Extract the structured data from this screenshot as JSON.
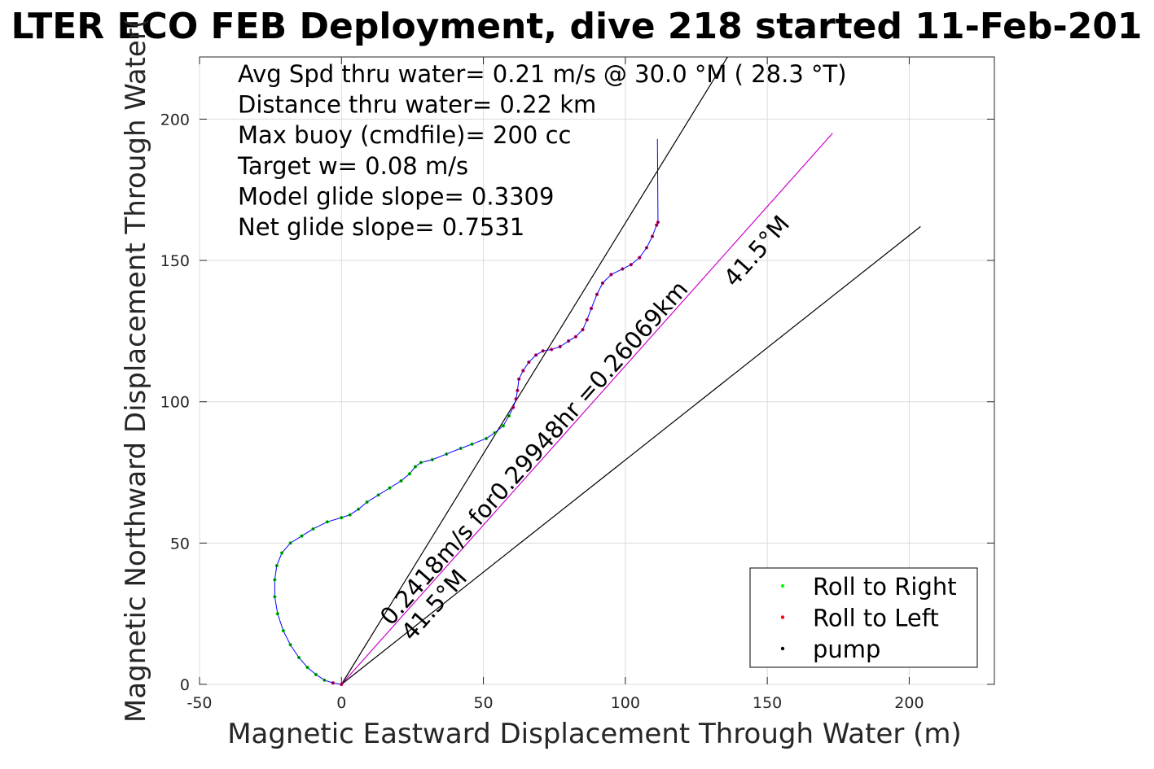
{
  "chart_data": {
    "type": "line",
    "title": "LTER ECO FEB Deployment, dive 218 started 11-Feb-201",
    "xlabel": "Magnetic Eastward Displacement Through Water (m)",
    "ylabel": "Magnetic Northward Displacement Through Water(",
    "xlim": [
      -50,
      230
    ],
    "ylim": [
      0,
      222
    ],
    "xticks": [
      -50,
      0,
      50,
      100,
      150,
      200
    ],
    "yticks": [
      0,
      50,
      100,
      150,
      200
    ],
    "xtick_labels": [
      "-50",
      "0",
      "50",
      "100",
      "150",
      "200"
    ],
    "ytick_labels": [
      "0",
      "50",
      "100",
      "150",
      "200"
    ],
    "grid": true,
    "legend_position": "bottom-right",
    "annotations": [
      "Avg Spd thru water=  0.21 m/s @  30.0 °M ( 28.3 °T)",
      "Distance thru water=  0.22 km",
      "Max buoy (cmdfile)= 200 cc",
      "Target w= 0.08 m/s",
      "Model glide slope= 0.3309",
      "Net glide slope= 0.7531"
    ],
    "rotated_labels": {
      "speed_label": "0.2418m/s for0.29948hr =0.26069km",
      "heading_upper": "41.5°M",
      "heading_lower": "41.5°M"
    },
    "legend": [
      {
        "label": "Roll to Right",
        "color": "#00ff00"
      },
      {
        "label": "Roll to Left",
        "color": "#ff0000"
      },
      {
        "label": "pump",
        "color": "#000000"
      }
    ],
    "track": [
      [
        0,
        0
      ],
      [
        -3,
        0.5
      ],
      [
        -6,
        1.5
      ],
      [
        -9,
        3.5
      ],
      [
        -12,
        6
      ],
      [
        -15,
        9.5
      ],
      [
        -18,
        14
      ],
      [
        -20.5,
        19
      ],
      [
        -22.5,
        25
      ],
      [
        -23.5,
        31
      ],
      [
        -23.5,
        37
      ],
      [
        -22.8,
        42
      ],
      [
        -21,
        46.5
      ],
      [
        -18,
        50
      ],
      [
        -14,
        52.5
      ],
      [
        -10,
        55
      ],
      [
        -5,
        57.5
      ],
      [
        0,
        59
      ],
      [
        3,
        60
      ],
      [
        6,
        62
      ],
      [
        9,
        64.5
      ],
      [
        13,
        67
      ],
      [
        17,
        69.5
      ],
      [
        21,
        72
      ],
      [
        24,
        74.5
      ],
      [
        26,
        77
      ],
      [
        28,
        78.5
      ],
      [
        32,
        79.5
      ],
      [
        37,
        81.5
      ],
      [
        42,
        83.5
      ],
      [
        46,
        85
      ],
      [
        51,
        87
      ],
      [
        54,
        89
      ],
      [
        57,
        91.5
      ],
      [
        59,
        95
      ],
      [
        60.5,
        98
      ],
      [
        61.5,
        101
      ],
      [
        62,
        104
      ],
      [
        62.5,
        108
      ],
      [
        64,
        111
      ],
      [
        66,
        114
      ],
      [
        68.5,
        116.5
      ],
      [
        71,
        118
      ],
      [
        74,
        118.5
      ],
      [
        77,
        119.5
      ],
      [
        80,
        121.5
      ],
      [
        82.5,
        123
      ],
      [
        85,
        125.5
      ],
      [
        86.5,
        129
      ],
      [
        88,
        133
      ],
      [
        90,
        138
      ],
      [
        92,
        142
      ],
      [
        95,
        145
      ],
      [
        99,
        147
      ],
      [
        102,
        148.5
      ],
      [
        105,
        151
      ],
      [
        107.5,
        154.5
      ],
      [
        109.5,
        158.5
      ],
      [
        111,
        162.5
      ],
      [
        111.5,
        163.5
      ],
      [
        111.3,
        193
      ]
    ],
    "roll_right_segments": [
      [
        2,
        26
      ],
      [
        25,
        29
      ],
      [
        30,
        34
      ]
    ],
    "series": [
      {
        "name": "Roll to Right",
        "color": "#00ff00"
      },
      {
        "name": "Roll to Left",
        "color": "#ff0000"
      },
      {
        "name": "pump",
        "color": "#000000"
      }
    ],
    "lines": [
      {
        "from": [
          0,
          0
        ],
        "to": [
          136,
          222
        ],
        "color": "#000000"
      },
      {
        "from": [
          0,
          0
        ],
        "to": [
          173,
          195
        ],
        "color": "#cc00cc"
      },
      {
        "from": [
          0,
          0
        ],
        "to": [
          204,
          162
        ],
        "color": "#000000"
      }
    ]
  }
}
